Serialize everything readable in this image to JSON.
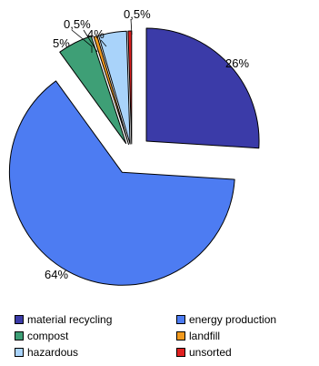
{
  "chart_data": {
    "type": "pie",
    "exploded": true,
    "legend_position": "bottom",
    "slices": [
      {
        "name": "material recycling",
        "value": 26,
        "label": "26%",
        "color": "#3B3BA8"
      },
      {
        "name": "energy production",
        "value": 64,
        "label": "64%",
        "color": "#4D7CF2"
      },
      {
        "name": "compost",
        "value": 5,
        "label": "5%",
        "color": "#3E9F76"
      },
      {
        "name": "landfill",
        "value": 0.5,
        "label": "0,5%",
        "color": "#F29A1E"
      },
      {
        "name": "hazardous",
        "value": 4,
        "label": "4%",
        "color": "#A9D3FA"
      },
      {
        "name": "unsorted",
        "value": 0.5,
        "label": "0,5%",
        "color": "#E02020"
      }
    ]
  },
  "legend": [
    {
      "label": "material recycling",
      "color": "#3B3BA8"
    },
    {
      "label": "energy production",
      "color": "#4D7CF2"
    },
    {
      "label": "compost",
      "color": "#3E9F76"
    },
    {
      "label": "landfill",
      "color": "#F29A1E"
    },
    {
      "label": "hazardous",
      "color": "#A9D3FA"
    },
    {
      "label": "unsorted",
      "color": "#E02020"
    }
  ]
}
